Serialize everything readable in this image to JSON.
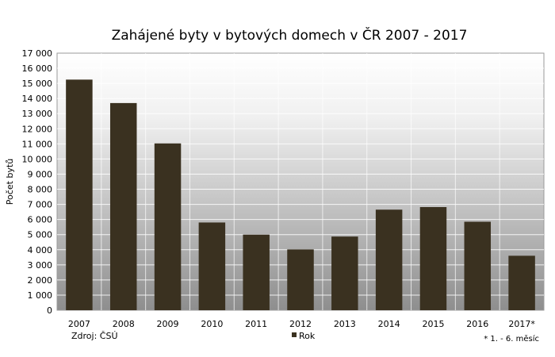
{
  "chart_data": {
    "type": "bar",
    "title": "Zahájené byty v bytových domech v ČR 2007 - 2017",
    "xlabel": "",
    "ylabel": "Počet bytů",
    "categories": [
      "2007",
      "2008",
      "2009",
      "2010",
      "2011",
      "2012",
      "2013",
      "2014",
      "2015",
      "2016",
      "2017*"
    ],
    "series": [
      {
        "name": "Rok",
        "values": [
          15250,
          13700,
          11030,
          5800,
          5000,
          4020,
          4870,
          6650,
          6820,
          5850,
          3600
        ],
        "color": "#3a3120"
      }
    ],
    "ylim": [
      0,
      17000
    ],
    "ytick_step": 1000,
    "ytick_labels": [
      "0",
      "1 000",
      "2 000",
      "3 000",
      "4 000",
      "5 000",
      "6 000",
      "7 000",
      "8 000",
      "9 000",
      "10 000",
      "11 000",
      "12 000",
      "13 000",
      "14 000",
      "15 000",
      "16 000",
      "17 000"
    ],
    "grid": true,
    "legend_position": "bottom-center",
    "source": "Zdroj: ČSÚ",
    "footnote": "* 1. - 6. měsíc"
  }
}
